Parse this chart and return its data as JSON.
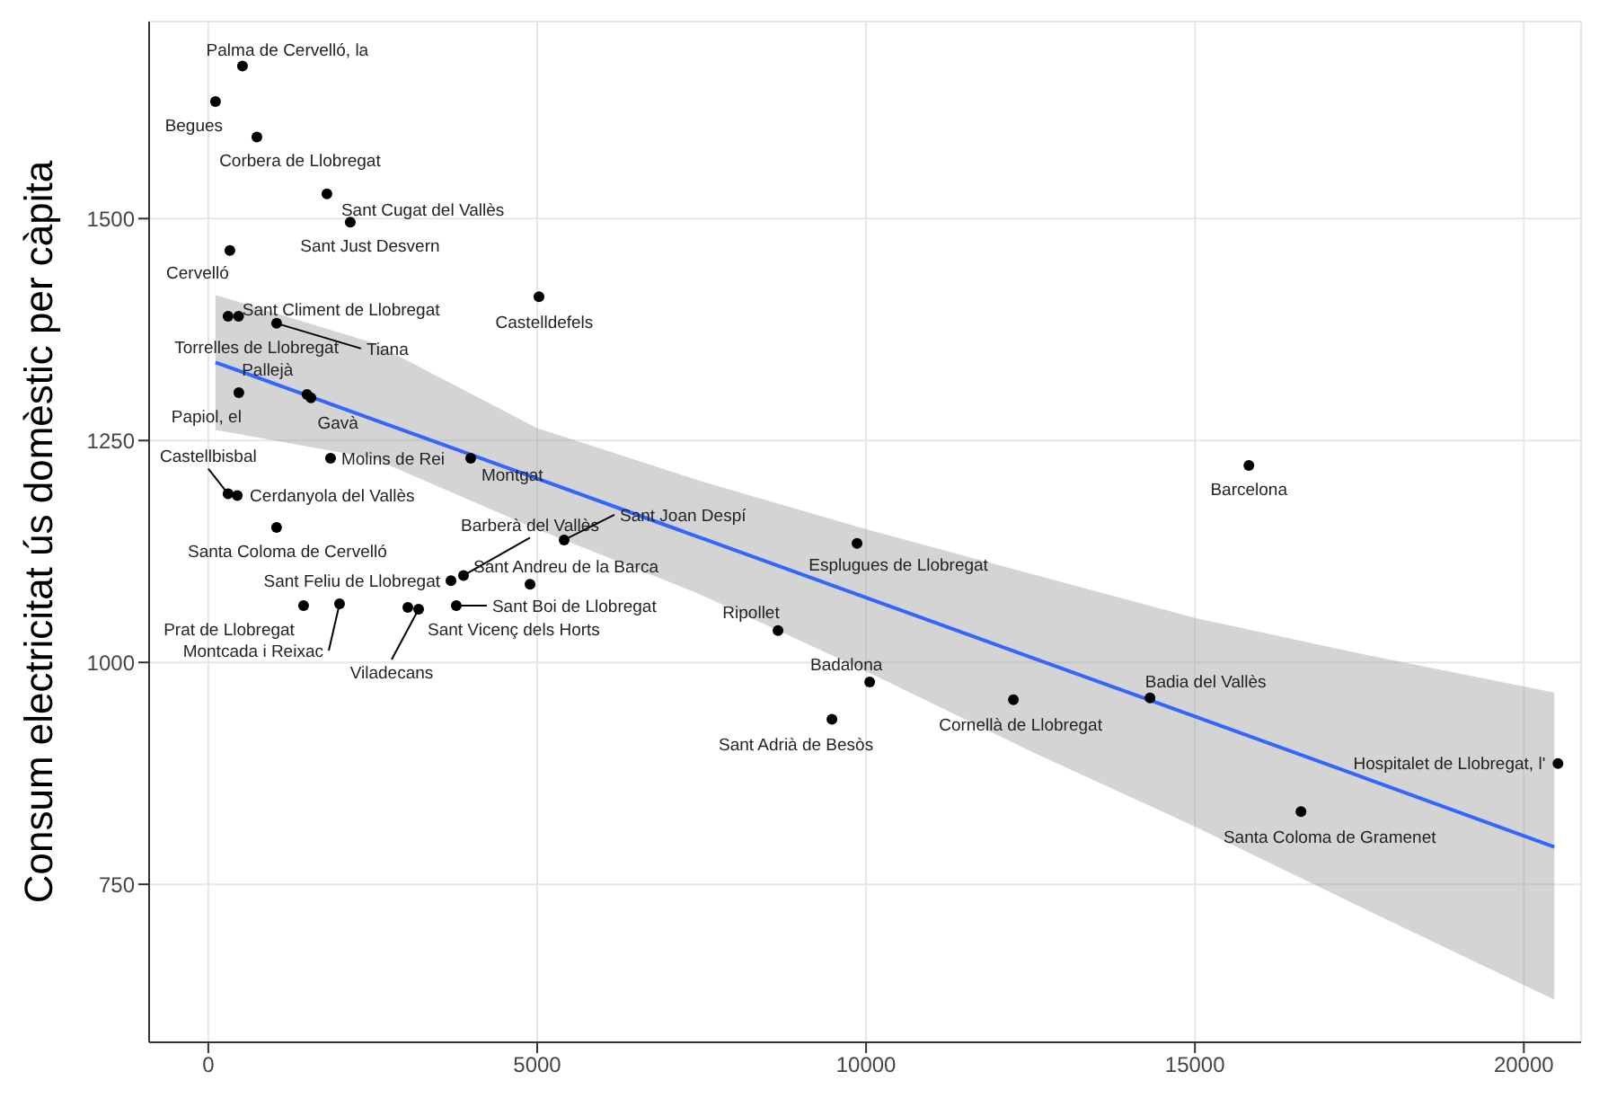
{
  "chart_data": {
    "type": "scatter",
    "ylabel": "Consum electricitat ús domèstic per càpita",
    "xlim": [
      -900,
      20870
    ],
    "ylim": [
      572,
      1722
    ],
    "xticks": [
      0,
      5000,
      10000,
      15000,
      20000
    ],
    "yticks": [
      750,
      1000,
      1250,
      1500
    ],
    "grid": true,
    "marker": "circle",
    "series": [
      {
        "color": "#000000",
        "x": [
          519,
          109,
          738,
          1803,
          2158,
          328,
          5027,
          300,
          460,
          1038,
          1500,
          464,
          1560,
          1858,
          3989,
          300,
          440,
          1038,
          1448,
          1995,
          3689,
          3033,
          3197,
          3880,
          3770,
          4891,
          5410,
          9863,
          8661,
          10055,
          9481,
          12240,
          15820,
          14317,
          16612,
          20519
        ],
        "values": [
          1672,
          1632,
          1592,
          1528,
          1496,
          1464,
          1412,
          1390,
          1390,
          1382,
          1302,
          1304,
          1298,
          1230,
          1230,
          1190,
          1188,
          1152,
          1064,
          1066,
          1092,
          1062,
          1060,
          1098,
          1064,
          1088,
          1138,
          1134,
          1036,
          978,
          936,
          958,
          1222,
          960,
          832,
          886
        ]
      },
      {
        "type": "line",
        "color": "#3366ff",
        "line_style": "solid",
        "marker": "none",
        "x": [
          109,
          2500,
          5000,
          7500,
          10000,
          12500,
          15000,
          17500,
          20464
        ],
        "values": [
          1338,
          1274,
          1207,
          1140,
          1073,
          1006,
          939,
          872,
          792
        ],
        "lower": [
          1262,
          1230,
          1150,
          1076,
          990,
          900,
          815,
          725,
          620
        ],
        "upper": [
          1414,
          1360,
          1264,
          1204,
          1150,
          1100,
          1050,
          1010,
          966
        ]
      }
    ],
    "annotations": [
      {
        "text": "Palma de Cervelló, la",
        "x": 519,
        "y": 1672
      },
      {
        "text": "Begues",
        "x": 109,
        "y": 1632
      },
      {
        "text": "Corbera de Llobregat",
        "x": 738,
        "y": 1592
      },
      {
        "text": "Sant Cugat del Vallès",
        "x": 1803,
        "y": 1528
      },
      {
        "text": "Sant Just Desvern",
        "x": 2158,
        "y": 1496
      },
      {
        "text": "Cervelló",
        "x": 328,
        "y": 1464
      },
      {
        "text": "Castelldefels",
        "x": 5027,
        "y": 1412
      },
      {
        "text": "Sant Climent de Llobregat",
        "x": 300,
        "y": 1390
      },
      {
        "text": "Torrelles de Llobregat",
        "x": 460,
        "y": 1390
      },
      {
        "text": "Tiana",
        "x": 1038,
        "y": 1382
      },
      {
        "text": "Pallejà",
        "x": 1500,
        "y": 1302
      },
      {
        "text": "Papiol, el",
        "x": 464,
        "y": 1304
      },
      {
        "text": "Gavà",
        "x": 1560,
        "y": 1298
      },
      {
        "text": "Molins de Rei",
        "x": 1858,
        "y": 1230
      },
      {
        "text": "Montgat",
        "x": 3989,
        "y": 1230
      },
      {
        "text": "Castellbisbal",
        "x": 300,
        "y": 1190
      },
      {
        "text": "Cerdanyola del Vallès",
        "x": 440,
        "y": 1188
      },
      {
        "text": "Santa Coloma de Cervelló",
        "x": 1038,
        "y": 1152
      },
      {
        "text": "Prat de Llobregat",
        "x": 1448,
        "y": 1064
      },
      {
        "text": "Montcada i Reixac",
        "x": 1995,
        "y": 1066
      },
      {
        "text": "Sant Feliu de Llobregat",
        "x": 3689,
        "y": 1092
      },
      {
        "text": "Sant Vicenç dels Horts",
        "x": 3033,
        "y": 1062
      },
      {
        "text": "Viladecans",
        "x": 3197,
        "y": 1060
      },
      {
        "text": "Barberà del Vallès",
        "x": 3880,
        "y": 1098
      },
      {
        "text": "Sant Boi de Llobregat",
        "x": 3770,
        "y": 1064
      },
      {
        "text": "Sant Andreu de la Barca",
        "x": 4891,
        "y": 1088
      },
      {
        "text": "Sant Joan Despí",
        "x": 5410,
        "y": 1138
      },
      {
        "text": "Esplugues de Llobregat",
        "x": 9863,
        "y": 1134
      },
      {
        "text": "Ripollet",
        "x": 8661,
        "y": 1036
      },
      {
        "text": "Badalona",
        "x": 10055,
        "y": 978
      },
      {
        "text": "Sant Adrià de Besòs",
        "x": 9481,
        "y": 936
      },
      {
        "text": "Cornellà de Llobregat",
        "x": 12240,
        "y": 958
      },
      {
        "text": "Barcelona",
        "x": 15820,
        "y": 1222
      },
      {
        "text": "Badia del Vallès",
        "x": 14317,
        "y": 960
      },
      {
        "text": "Santa Coloma de Gramenet",
        "x": 16612,
        "y": 832
      },
      {
        "text": "Hospitalet de Llobregat, l'",
        "x": 20519,
        "y": 886
      }
    ]
  }
}
